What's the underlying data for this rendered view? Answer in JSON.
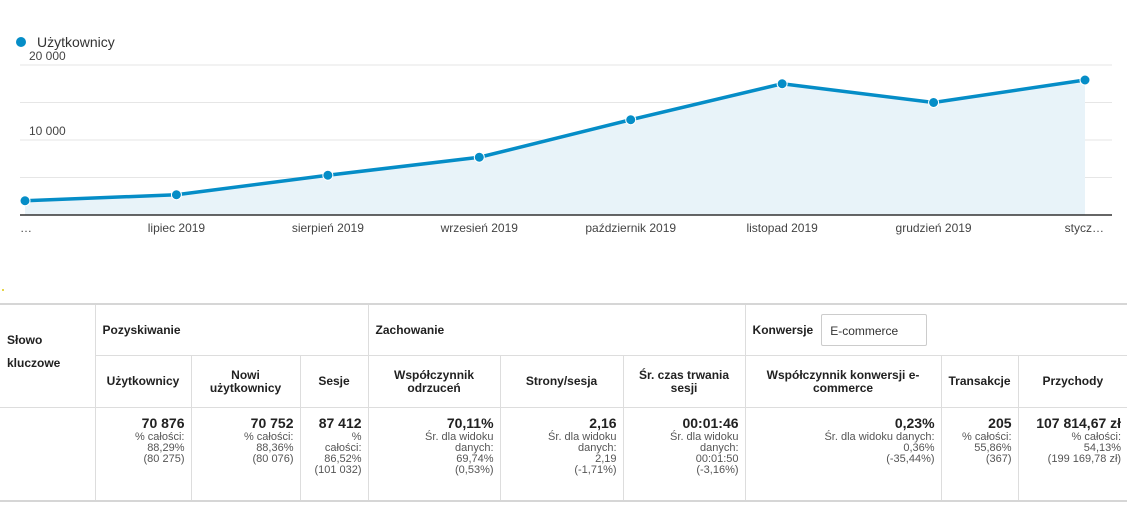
{
  "legend": {
    "label": "Użytkownicy",
    "color": "#058dc7"
  },
  "chart_data": {
    "type": "area",
    "series": [
      {
        "name": "Użytkownicy",
        "values": [
          1900,
          2700,
          5300,
          7700,
          12700,
          17500,
          15000,
          18000
        ]
      }
    ],
    "categories": [
      "…",
      "lipiec 2019",
      "sierpień 2019",
      "wrzesień 2019",
      "październik 2019",
      "listopad 2019",
      "grudzień 2019",
      "stycz…"
    ],
    "y_ticks": [
      "20 000",
      "10 000"
    ],
    "y_tick_values": [
      20000,
      10000
    ],
    "ylim": [
      0,
      22000
    ],
    "grid": true,
    "line_color": "#058dc7",
    "fill_color": "#e8f3f9"
  },
  "table": {
    "keyword_header": "Słowo kluczowe",
    "groups": {
      "acquisition": "Pozyskiwanie",
      "behavior": "Zachowanie",
      "conversions": "Konwersje",
      "conversion_select": "E-commerce"
    },
    "metrics": {
      "users": "Użytkownicy",
      "new_users": "Nowi użytkownicy",
      "sessions": "Sesje",
      "bounce": "Współczynnik odrzuceń",
      "pages": "Strony/sesja",
      "duration": "Śr. czas trwania sesji",
      "conv_rate": "Współczynnik konwersji e-commerce",
      "transactions": "Transakcje",
      "revenue": "Przychody"
    },
    "totals": {
      "users": {
        "value": "70 876",
        "l1": "% całości:",
        "l2": "88,29%",
        "l3": "(80 275)"
      },
      "new_users": {
        "value": "70 752",
        "l1": "% całości:",
        "l2": "88,36%",
        "l3": "(80 076)"
      },
      "sessions": {
        "value": "87 412",
        "l1": "%",
        "l2": "całości:",
        "l3": "86,52%",
        "l4": "(101 032)"
      },
      "bounce": {
        "value": "70,11%",
        "l1": "Śr. dla widoku",
        "l2": "danych:",
        "l3": "69,74%",
        "l4": "(0,53%)"
      },
      "pages": {
        "value": "2,16",
        "l1": "Śr. dla widoku",
        "l2": "danych:",
        "l3": "2,19",
        "l4": "(-1,71%)"
      },
      "duration": {
        "value": "00:01:46",
        "l1": "Śr. dla widoku",
        "l2": "danych:",
        "l3": "00:01:50",
        "l4": "(-3,16%)"
      },
      "conv_rate": {
        "value": "0,23%",
        "l1": "Śr. dla widoku danych:",
        "l2": "0,36%",
        "l3": "(-35,44%)"
      },
      "transactions": {
        "value": "205",
        "l1": "% całości:",
        "l2": "55,86%",
        "l3": "(367)"
      },
      "revenue": {
        "value": "107 814,67 zł",
        "l1": "% całości:",
        "l2": "54,13%",
        "l3": "(199 169,78 zł)"
      }
    }
  }
}
